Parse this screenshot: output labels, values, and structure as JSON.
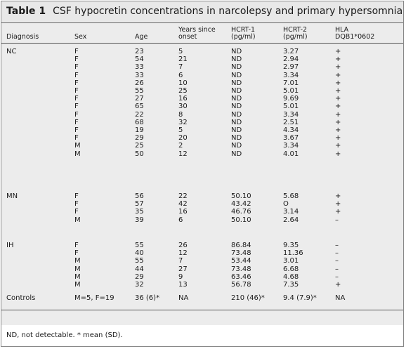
{
  "table": {
    "number": "Table 1",
    "caption": "CSF hypocretin concentrations in narcolepsy and primary hypersomnia",
    "headers": {
      "diagnosis": "Diagnosis",
      "sex": "Sex",
      "age": "Age",
      "years_line1": "Years since",
      "years_line2": "onset",
      "hcrt1_line1": "HCRT-1",
      "hcrt1_line2": "(pg/ml)",
      "hcrt2_line1": "HCRT-2",
      "hcrt2_line2": "(pg/ml)",
      "hla_line1": "HLA",
      "hla_line2": "DQB1*0602"
    },
    "groups": [
      {
        "label": "NC",
        "rows": [
          [
            "F",
            "23",
            "5",
            "ND",
            "3.27",
            "+"
          ],
          [
            "F",
            "54",
            "21",
            "ND",
            "2.94",
            "+"
          ],
          [
            "F",
            "33",
            "7",
            "ND",
            "2.97",
            "+"
          ],
          [
            "F",
            "33",
            "6",
            "ND",
            "3.34",
            "+"
          ],
          [
            "F",
            "26",
            "10",
            "ND",
            "7.01",
            "+"
          ],
          [
            "F",
            "55",
            "25",
            "ND",
            "5.01",
            "+"
          ],
          [
            "F",
            "27",
            "16",
            "ND",
            "9.69",
            "+"
          ],
          [
            "F",
            "65",
            "30",
            "ND",
            "5.01",
            "+"
          ],
          [
            "F",
            "22",
            "8",
            "ND",
            "3.34",
            "+"
          ],
          [
            "F",
            "68",
            "32",
            "ND",
            "2.51",
            "+"
          ],
          [
            "F",
            "19",
            "5",
            "ND",
            "4.34",
            "+"
          ],
          [
            "F",
            "29",
            "20",
            "ND",
            "3.67",
            "+"
          ],
          [
            "M",
            "25",
            "2",
            "ND",
            "3.34",
            "+"
          ],
          [
            "M",
            "50",
            "12",
            "ND",
            "4.01",
            "+"
          ]
        ]
      },
      {
        "label": "MN",
        "rows": [
          [
            "F",
            "56",
            "22",
            "50.10",
            "5.68",
            "+"
          ],
          [
            "F",
            "57",
            "42",
            "43.42",
            "O",
            "+"
          ],
          [
            "F",
            "35",
            "16",
            "46.76",
            "3.14",
            "+"
          ],
          [
            "M",
            "39",
            "6",
            "50.10",
            "2.64",
            "–"
          ]
        ]
      },
      {
        "label": "IH",
        "rows": [
          [
            "F",
            "55",
            "26",
            "86.84",
            "9.35",
            "–"
          ],
          [
            "F",
            "40",
            "12",
            "73.48",
            "11.36",
            "–"
          ],
          [
            "M",
            "55",
            "7",
            "53.44",
            "3.01",
            "–"
          ],
          [
            "M",
            "44",
            "27",
            "73.48",
            "6.68",
            "–"
          ],
          [
            "M",
            "29",
            "9",
            "63.46",
            "4.68",
            "–"
          ],
          [
            "M",
            "32",
            "13",
            "56.78",
            "7.35",
            "+"
          ]
        ]
      }
    ],
    "controls": {
      "label": "Controls",
      "sex": "M=5, F=19",
      "age": "36 (6)*",
      "years": "NA",
      "hcrt1": "210 (46)*",
      "hcrt2": "9.4 (7.9)*",
      "hla": "NA"
    },
    "footnote": "ND, not detectable. * mean (SD)."
  }
}
